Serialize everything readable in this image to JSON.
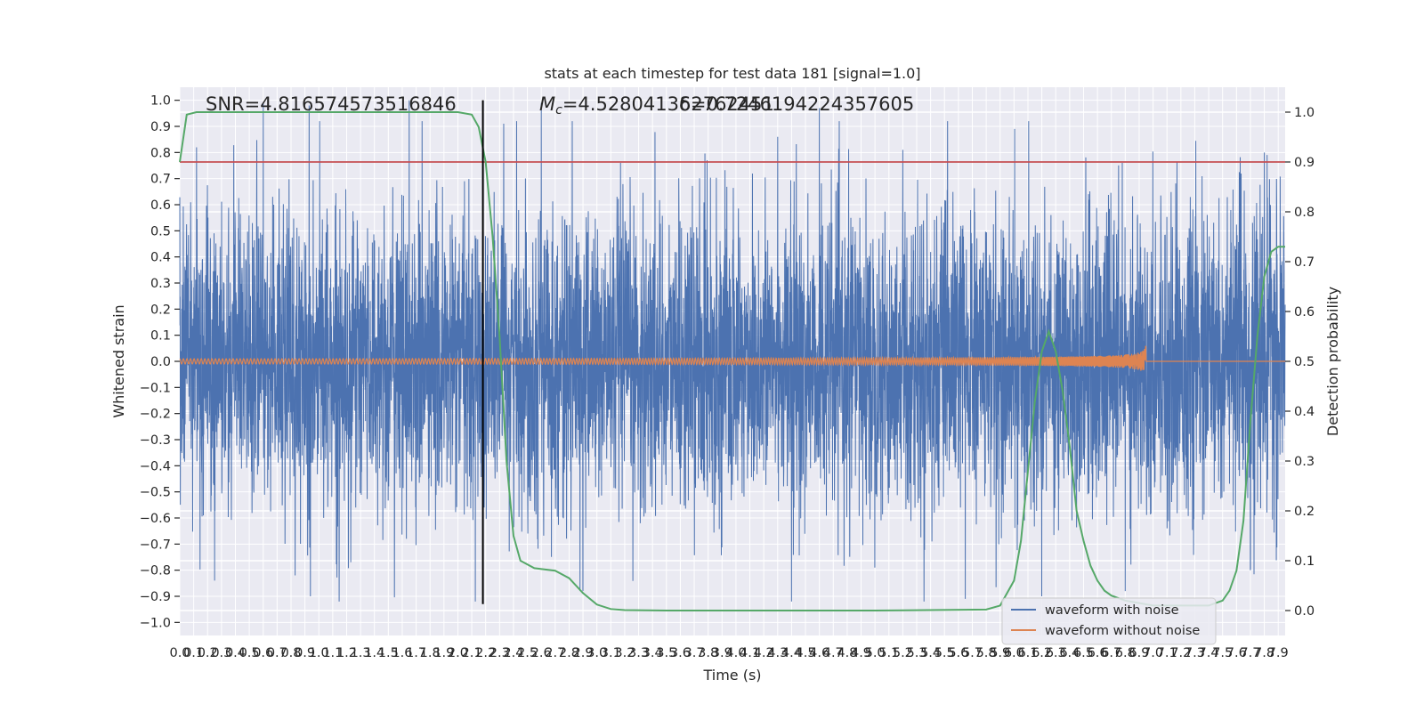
{
  "chart_data": {
    "type": "line",
    "title": "stats at each timestep for test data 181 [signal=1.0]",
    "xlabel": "Time (s)",
    "ylabel": "Whitened strain",
    "y2label": "Detection probability",
    "xlim": [
      0.0,
      7.95
    ],
    "ylim": [
      -1.05,
      1.05
    ],
    "y2lim": [
      -0.05,
      1.05
    ],
    "x_ticks": [
      "0.0",
      "0.1",
      "0.2",
      "0.3",
      "0.4",
      "0.5",
      "0.6",
      "0.7",
      "0.8",
      "0.9",
      "1.0",
      "1.1",
      "1.2",
      "1.3",
      "1.4",
      "1.5",
      "1.6",
      "1.7",
      "1.8",
      "1.9",
      "2.0",
      "2.1",
      "2.2",
      "2.3",
      "2.4",
      "2.5",
      "2.6",
      "2.7",
      "2.8",
      "2.9",
      "3.0",
      "3.1",
      "3.2",
      "3.3",
      "3.4",
      "3.5",
      "3.6",
      "3.7",
      "3.8",
      "3.9",
      "4.0",
      "4.1",
      "4.2",
      "4.3",
      "4.4",
      "4.5",
      "4.6",
      "4.7",
      "4.8",
      "4.9",
      "5.0",
      "5.1",
      "5.2",
      "5.3",
      "5.4",
      "5.5",
      "5.6",
      "5.7",
      "5.8",
      "5.9",
      "6.0",
      "6.1",
      "6.2",
      "6.3",
      "6.4",
      "6.5",
      "6.6",
      "6.7",
      "6.8",
      "6.9",
      "7.0",
      "7.1",
      "7.2",
      "7.3",
      "7.4",
      "7.5",
      "7.6",
      "7.7",
      "7.8",
      "7.9"
    ],
    "y_ticks": [
      "1.0",
      "0.9",
      "0.8",
      "0.7",
      "0.6",
      "0.5",
      "0.4",
      "0.3",
      "0.2",
      "0.1",
      "0.0",
      "−0.1",
      "−0.2",
      "−0.3",
      "−0.4",
      "−0.5",
      "−0.6",
      "−0.7",
      "−0.8",
      "−0.9",
      "−1.0"
    ],
    "y2_ticks": [
      "1.0",
      "0.9",
      "0.8",
      "0.7",
      "0.6",
      "0.5",
      "0.4",
      "0.3",
      "0.2",
      "0.1",
      "0.0"
    ],
    "annotations": {
      "snr": "SNR=4.816574573516846",
      "mc_symbol": "M",
      "mc_sub": "c",
      "mc_value": "=4.528041362762451",
      "overlap": "δ=0.7246194224357605"
    },
    "threshold_line": {
      "axis": "y2",
      "value": 0.9,
      "color": "#c44e52"
    },
    "marker_line": {
      "x": 2.18,
      "y_from": -0.93,
      "y_to": 1.0,
      "color": "#000000"
    },
    "series": [
      {
        "name": "waveform with noise",
        "color": "#4c72b0",
        "axis": "y",
        "style": "dense noise; |amplitude| ~0.3 typical, peaks to ~1.0",
        "peaks": [
          [
            0.12,
            0.82
          ],
          [
            0.6,
            0.99
          ],
          [
            0.93,
            0.98
          ],
          [
            1.65,
            1.0
          ],
          [
            2.6,
            0.99
          ],
          [
            4.3,
            0.86
          ],
          [
            4.6,
            0.97
          ],
          [
            5.2,
            0.81
          ],
          [
            7.8,
            0.8
          ],
          [
            0.25,
            -0.84
          ],
          [
            0.83,
            -0.82
          ],
          [
            0.94,
            -0.9
          ],
          [
            2.9,
            -0.88
          ],
          [
            4.4,
            -0.92
          ],
          [
            5.65,
            -0.91
          ],
          [
            6.2,
            -0.9
          ],
          [
            6.8,
            -0.88
          ],
          [
            7.7,
            -0.8
          ]
        ]
      },
      {
        "name": "waveform without noise",
        "color": "#dd8452",
        "axis": "y",
        "style": "chirp; oscillates around 0 with growing amplitude, merger then flat",
        "start_amplitude": 0.01,
        "merger_time": 6.95,
        "peak_amplitude": 0.12
      },
      {
        "name": "detection probability",
        "color": "#55a868",
        "axis": "y2",
        "x": [
          0.0,
          0.05,
          0.12,
          0.3,
          1.0,
          2.0,
          2.1,
          2.15,
          2.2,
          2.25,
          2.3,
          2.35,
          2.4,
          2.45,
          2.55,
          2.7,
          2.8,
          2.9,
          3.0,
          3.1,
          3.2,
          3.5,
          4.0,
          5.0,
          5.8,
          5.9,
          6.0,
          6.05,
          6.1,
          6.15,
          6.2,
          6.25,
          6.3,
          6.35,
          6.4,
          6.45,
          6.5,
          6.55,
          6.6,
          6.65,
          6.7,
          6.8,
          6.9,
          7.0,
          7.2,
          7.4,
          7.5,
          7.55,
          7.6,
          7.65,
          7.7,
          7.75,
          7.8,
          7.85,
          7.9,
          7.95
        ],
        "values": [
          0.9,
          0.995,
          1.0,
          1.0,
          1.0,
          1.0,
          0.995,
          0.97,
          0.9,
          0.75,
          0.55,
          0.3,
          0.15,
          0.1,
          0.085,
          0.08,
          0.065,
          0.035,
          0.012,
          0.003,
          0.001,
          0.0,
          0.0,
          0.0,
          0.002,
          0.01,
          0.06,
          0.14,
          0.28,
          0.42,
          0.52,
          0.56,
          0.52,
          0.44,
          0.33,
          0.2,
          0.14,
          0.09,
          0.06,
          0.04,
          0.03,
          0.02,
          0.015,
          0.01,
          0.01,
          0.01,
          0.02,
          0.04,
          0.08,
          0.18,
          0.38,
          0.55,
          0.67,
          0.72,
          0.73,
          0.73
        ]
      }
    ],
    "legend": {
      "position": "lower-right",
      "entries": [
        {
          "label": "waveform with noise",
          "color": "#4c72b0"
        },
        {
          "label": "waveform without noise",
          "color": "#dd8452"
        }
      ]
    },
    "background": "#eaeaf2",
    "grid": true
  }
}
